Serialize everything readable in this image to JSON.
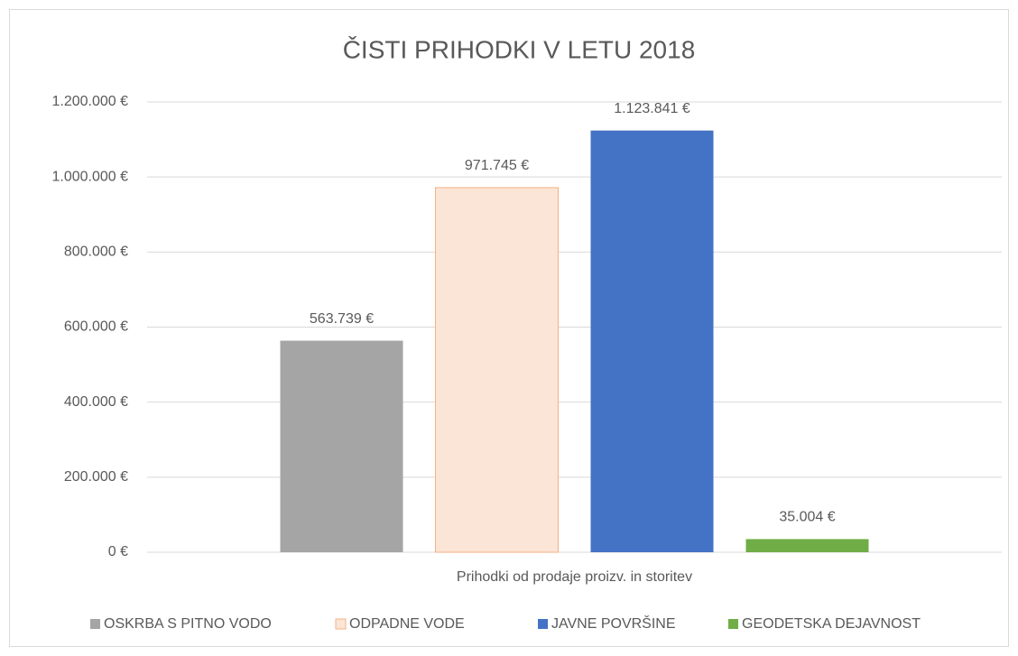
{
  "chart_data": {
    "type": "bar",
    "title": "ČISTI PRIHODKI V LETU 2018",
    "categories": [
      "Prihodki od prodaje proizv. in storitev"
    ],
    "series": [
      {
        "name": "OSKRBA S PITNO VODO",
        "color": "#a5a5a5",
        "values": [
          563739
        ],
        "value_labels": [
          "563.739 €"
        ]
      },
      {
        "name": "ODPADNE VODE",
        "color": "#fbe5d6",
        "stroke": "#f4b183",
        "values": [
          971745
        ],
        "value_labels": [
          "971.745 €"
        ]
      },
      {
        "name": "JAVNE POVRŠINE",
        "color": "#4472c4",
        "values": [
          1123841
        ],
        "value_labels": [
          "1.123.841 €"
        ]
      },
      {
        "name": "GEODETSKA DEJAVNOST",
        "color": "#70ad47",
        "values": [
          35004
        ],
        "value_labels": [
          "35.004 €"
        ]
      }
    ],
    "ylim": [
      0,
      1200000
    ],
    "yticks": [
      {
        "value": 0,
        "label": "0 €"
      },
      {
        "value": 200000,
        "label": "200.000 €"
      },
      {
        "value": 400000,
        "label": "400.000 €"
      },
      {
        "value": 600000,
        "label": "600.000 €"
      },
      {
        "value": 800000,
        "label": "800.000 €"
      },
      {
        "value": 1000000,
        "label": "1.000.000 €"
      },
      {
        "value": 1200000,
        "label": "1.200.000 €"
      }
    ],
    "grid": true,
    "legend": "bottom"
  }
}
